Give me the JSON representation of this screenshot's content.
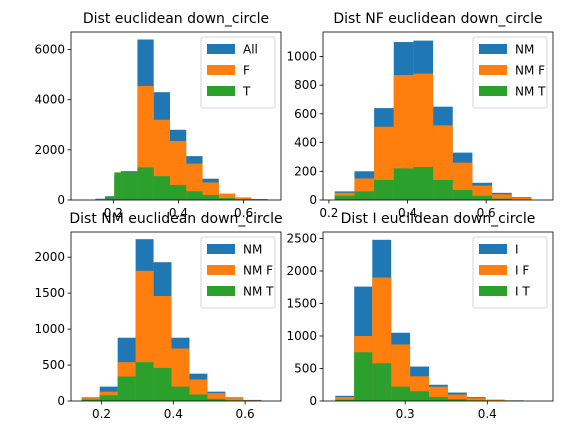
{
  "chart_data": [
    {
      "type": "bar",
      "title": "Dist euclidean down_circle",
      "xlabel": "",
      "ylabel": "",
      "xlim": [
        0.07,
        0.715
      ],
      "ylim": [
        0,
        6700
      ],
      "xticks": [
        0.2,
        0.4,
        0.6
      ],
      "xtick_labels": [
        "0.2",
        "0.4",
        "0.6"
      ],
      "yticks": [
        0,
        2000,
        4000,
        6000
      ],
      "ytick_labels": [
        "0",
        "2000",
        "4000",
        "6000"
      ],
      "legend": {
        "position": "top-right",
        "entries": [
          "All",
          "F",
          "T"
        ]
      },
      "grid": false,
      "series": [
        {
          "name": "All",
          "color": "#1f77b4",
          "bins": [
            [
              0.145,
              0.175,
              50
            ],
            [
              0.175,
              0.203,
              150
            ],
            [
              0.203,
              0.223,
              950
            ],
            [
              0.223,
              0.274,
              1150
            ],
            [
              0.274,
              0.324,
              6400
            ],
            [
              0.324,
              0.374,
              4300
            ],
            [
              0.374,
              0.424,
              2800
            ],
            [
              0.424,
              0.474,
              1750
            ],
            [
              0.474,
              0.524,
              850
            ],
            [
              0.524,
              0.574,
              250
            ],
            [
              0.574,
              0.624,
              100
            ],
            [
              0.624,
              0.674,
              40
            ]
          ]
        },
        {
          "name": "F",
          "color": "#ff7f0e",
          "bins": [
            [
              0.145,
              0.175,
              30
            ],
            [
              0.175,
              0.203,
              100
            ],
            [
              0.203,
              0.223,
              700
            ],
            [
              0.223,
              0.274,
              1100
            ],
            [
              0.274,
              0.324,
              4550
            ],
            [
              0.324,
              0.374,
              3200
            ],
            [
              0.374,
              0.424,
              2350
            ],
            [
              0.424,
              0.474,
              1450
            ],
            [
              0.474,
              0.524,
              700
            ],
            [
              0.524,
              0.574,
              250
            ],
            [
              0.574,
              0.624,
              90
            ],
            [
              0.624,
              0.674,
              30
            ]
          ]
        },
        {
          "name": "T",
          "color": "#2ca02c",
          "bins": [
            [
              0.175,
              0.203,
              100
            ],
            [
              0.203,
              0.224,
              1100
            ],
            [
              0.224,
              0.274,
              1100
            ],
            [
              0.274,
              0.324,
              1300
            ],
            [
              0.324,
              0.374,
              950
            ],
            [
              0.374,
              0.424,
              600
            ],
            [
              0.424,
              0.474,
              350
            ],
            [
              0.474,
              0.524,
              200
            ],
            [
              0.524,
              0.574,
              80
            ],
            [
              0.574,
              0.624,
              30
            ]
          ]
        }
      ]
    },
    {
      "type": "bar",
      "title": "Dist NF euclidean down_circle",
      "xlabel": "",
      "ylabel": "",
      "xlim": [
        0.185,
        0.77
      ],
      "ylim": [
        0,
        1170
      ],
      "xticks": [
        0.2,
        0.4,
        0.6
      ],
      "xtick_labels": [
        "0.2",
        "0.4",
        "0.6"
      ],
      "yticks": [
        0,
        200,
        400,
        600,
        800,
        1000
      ],
      "ytick_labels": [
        "0",
        "200",
        "400",
        "600",
        "800",
        "1000"
      ],
      "legend": {
        "position": "top-right",
        "entries": [
          "NM",
          "NM F",
          "NM T"
        ]
      },
      "grid": false,
      "series": [
        {
          "name": "NM",
          "color": "#1f77b4",
          "bins": [
            [
              0.215,
              0.265,
              60
            ],
            [
              0.265,
              0.315,
              200
            ],
            [
              0.315,
              0.365,
              640
            ],
            [
              0.365,
              0.415,
              1100
            ],
            [
              0.415,
              0.465,
              1110
            ],
            [
              0.465,
              0.515,
              650
            ],
            [
              0.515,
              0.565,
              330
            ],
            [
              0.565,
              0.615,
              120
            ],
            [
              0.615,
              0.665,
              50
            ],
            [
              0.665,
              0.715,
              20
            ]
          ]
        },
        {
          "name": "NM F",
          "color": "#ff7f0e",
          "bins": [
            [
              0.215,
              0.265,
              50
            ],
            [
              0.265,
              0.315,
              150
            ],
            [
              0.315,
              0.365,
              510
            ],
            [
              0.365,
              0.415,
              870
            ],
            [
              0.415,
              0.465,
              880
            ],
            [
              0.465,
              0.515,
              520
            ],
            [
              0.515,
              0.565,
              260
            ],
            [
              0.565,
              0.615,
              100
            ],
            [
              0.615,
              0.665,
              40
            ],
            [
              0.665,
              0.715,
              15
            ]
          ]
        },
        {
          "name": "NM T",
          "color": "#2ca02c",
          "bins": [
            [
              0.215,
              0.265,
              30
            ],
            [
              0.265,
              0.315,
              60
            ],
            [
              0.315,
              0.365,
              140
            ],
            [
              0.365,
              0.415,
              220
            ],
            [
              0.415,
              0.465,
              230
            ],
            [
              0.465,
              0.515,
              140
            ],
            [
              0.515,
              0.565,
              70
            ],
            [
              0.565,
              0.615,
              30
            ],
            [
              0.615,
              0.665,
              10
            ]
          ]
        }
      ]
    },
    {
      "type": "bar",
      "title": "Dist NM euclidean down_circle",
      "xlabel": "",
      "ylabel": "",
      "xlim": [
        0.115,
        0.7
      ],
      "ylim": [
        0,
        2350
      ],
      "xticks": [
        0.2,
        0.4,
        0.6
      ],
      "xtick_labels": [
        "0.2",
        "0.4",
        "0.6"
      ],
      "yticks": [
        0,
        500,
        1000,
        1500,
        2000
      ],
      "ytick_labels": [
        "0",
        "500",
        "1000",
        "1500",
        "2000"
      ],
      "legend": {
        "position": "top-right",
        "entries": [
          "NM",
          "NM F",
          "NM T"
        ]
      },
      "grid": false,
      "series": [
        {
          "name": "NM",
          "color": "#1f77b4",
          "bins": [
            [
              0.145,
              0.195,
              50
            ],
            [
              0.195,
              0.245,
              200
            ],
            [
              0.245,
              0.295,
              880
            ],
            [
              0.295,
              0.345,
              2250
            ],
            [
              0.345,
              0.395,
              1930
            ],
            [
              0.395,
              0.445,
              880
            ],
            [
              0.445,
              0.495,
              380
            ],
            [
              0.495,
              0.545,
              130
            ],
            [
              0.545,
              0.595,
              50
            ],
            [
              0.595,
              0.645,
              15
            ]
          ]
        },
        {
          "name": "NM F",
          "color": "#ff7f0e",
          "bins": [
            [
              0.145,
              0.195,
              40
            ],
            [
              0.195,
              0.245,
              130
            ],
            [
              0.245,
              0.295,
              540
            ],
            [
              0.295,
              0.345,
              1810
            ],
            [
              0.345,
              0.395,
              1460
            ],
            [
              0.395,
              0.445,
              730
            ],
            [
              0.445,
              0.495,
              300
            ],
            [
              0.495,
              0.545,
              110
            ],
            [
              0.545,
              0.595,
              40
            ],
            [
              0.595,
              0.645,
              10
            ]
          ]
        },
        {
          "name": "NM T",
          "color": "#2ca02c",
          "bins": [
            [
              0.145,
              0.195,
              20
            ],
            [
              0.195,
              0.245,
              80
            ],
            [
              0.245,
              0.295,
              340
            ],
            [
              0.295,
              0.345,
              540
            ],
            [
              0.345,
              0.395,
              460
            ],
            [
              0.395,
              0.445,
              200
            ],
            [
              0.445,
              0.495,
              90
            ],
            [
              0.495,
              0.545,
              30
            ],
            [
              0.545,
              0.595,
              10
            ]
          ]
        }
      ]
    },
    {
      "type": "bar",
      "title": "Dist I euclidean down_circle",
      "xlabel": "",
      "ylabel": "",
      "xlim": [
        0.2,
        0.48
      ],
      "ylim": [
        0,
        2600
      ],
      "xticks": [
        0.3,
        0.4
      ],
      "xtick_labels": [
        "0.3",
        "0.4"
      ],
      "yticks": [
        0,
        500,
        1000,
        1500,
        2000,
        2500
      ],
      "ytick_labels": [
        "0",
        "500",
        "1000",
        "1500",
        "2000",
        "2500"
      ],
      "legend": {
        "position": "top-right",
        "entries": [
          "I",
          "I F",
          "I T"
        ]
      },
      "grid": false,
      "series": [
        {
          "name": "I",
          "color": "#1f77b4",
          "bins": [
            [
              0.215,
              0.238,
              80
            ],
            [
              0.238,
              0.26,
              1760
            ],
            [
              0.26,
              0.283,
              2480
            ],
            [
              0.283,
              0.306,
              1050
            ],
            [
              0.306,
              0.329,
              530
            ],
            [
              0.329,
              0.352,
              250
            ],
            [
              0.352,
              0.375,
              130
            ],
            [
              0.375,
              0.398,
              60
            ],
            [
              0.398,
              0.421,
              20
            ],
            [
              0.421,
              0.444,
              10
            ]
          ]
        },
        {
          "name": "I F",
          "color": "#ff7f0e",
          "bins": [
            [
              0.215,
              0.238,
              60
            ],
            [
              0.238,
              0.26,
              1000
            ],
            [
              0.26,
              0.283,
              1900
            ],
            [
              0.283,
              0.306,
              870
            ],
            [
              0.306,
              0.329,
              380
            ],
            [
              0.329,
              0.352,
              220
            ],
            [
              0.352,
              0.375,
              100
            ],
            [
              0.375,
              0.398,
              45
            ],
            [
              0.398,
              0.421,
              15
            ],
            [
              0.421,
              0.444,
              5
            ]
          ]
        },
        {
          "name": "I T",
          "color": "#2ca02c",
          "bins": [
            [
              0.215,
              0.238,
              20
            ],
            [
              0.238,
              0.26,
              750
            ],
            [
              0.26,
              0.283,
              580
            ],
            [
              0.283,
              0.306,
              220
            ],
            [
              0.306,
              0.329,
              150
            ],
            [
              0.329,
              0.352,
              60
            ],
            [
              0.352,
              0.375,
              30
            ],
            [
              0.375,
              0.398,
              10
            ]
          ]
        }
      ]
    }
  ]
}
